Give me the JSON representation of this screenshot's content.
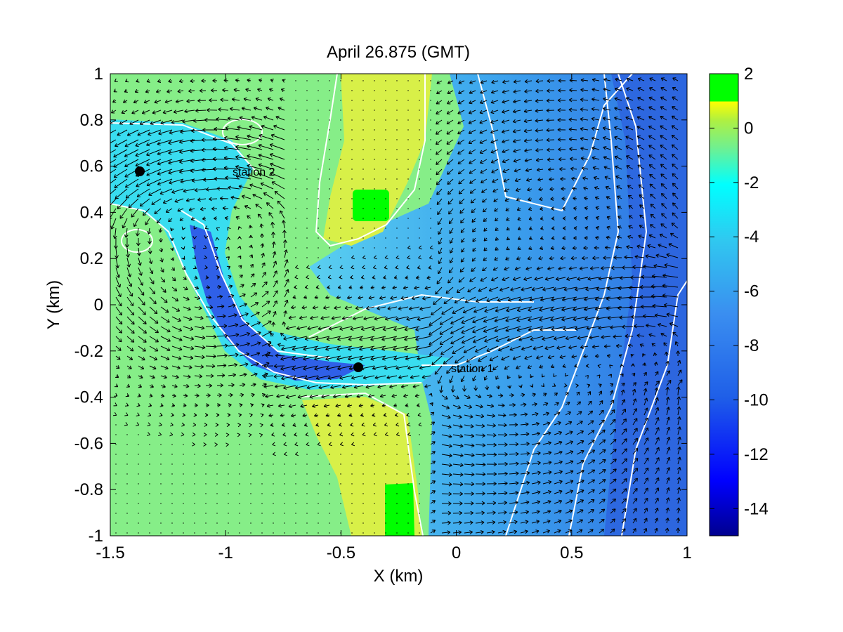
{
  "chart_data": {
    "type": "heatmap",
    "title": "April 26.875 (GMT)",
    "xlabel": "X (km)",
    "ylabel": "Y (km)",
    "xlim": [
      -1.5,
      1
    ],
    "ylim": [
      -1,
      1
    ],
    "x_ticks": [
      -1.5,
      -1,
      -0.5,
      0,
      0.5,
      1
    ],
    "x_tick_labels": [
      "-1.5",
      "-1",
      "-0.5",
      "0",
      "0.5",
      "1"
    ],
    "y_ticks": [
      1,
      0.8,
      0.6,
      0.4,
      0.2,
      0,
      -0.2,
      -0.4,
      -0.6,
      -0.8,
      -1
    ],
    "y_tick_labels": [
      "1",
      "0.8",
      "0.6",
      "0.4",
      "0.2",
      "0",
      "-0.2",
      "-0.4",
      "-0.6",
      "-0.8",
      "-1"
    ],
    "colorbar": {
      "range": [
        -15,
        2
      ],
      "ticks": [
        2,
        0,
        -2,
        -4,
        -6,
        -8,
        -10,
        -12,
        -14
      ],
      "tick_labels": [
        "2",
        "0",
        "-2",
        "-4",
        "-6",
        "-8",
        "-10",
        "-12",
        "-14"
      ],
      "colormap": "jet"
    },
    "stations": [
      {
        "label": "station 1",
        "x": -0.42,
        "y": -0.28
      },
      {
        "label": "station 2",
        "x": -1.37,
        "y": 0.58
      }
    ],
    "grid": false,
    "overlays": [
      "white contour lines",
      "velocity vector field (quiver)"
    ]
  }
}
